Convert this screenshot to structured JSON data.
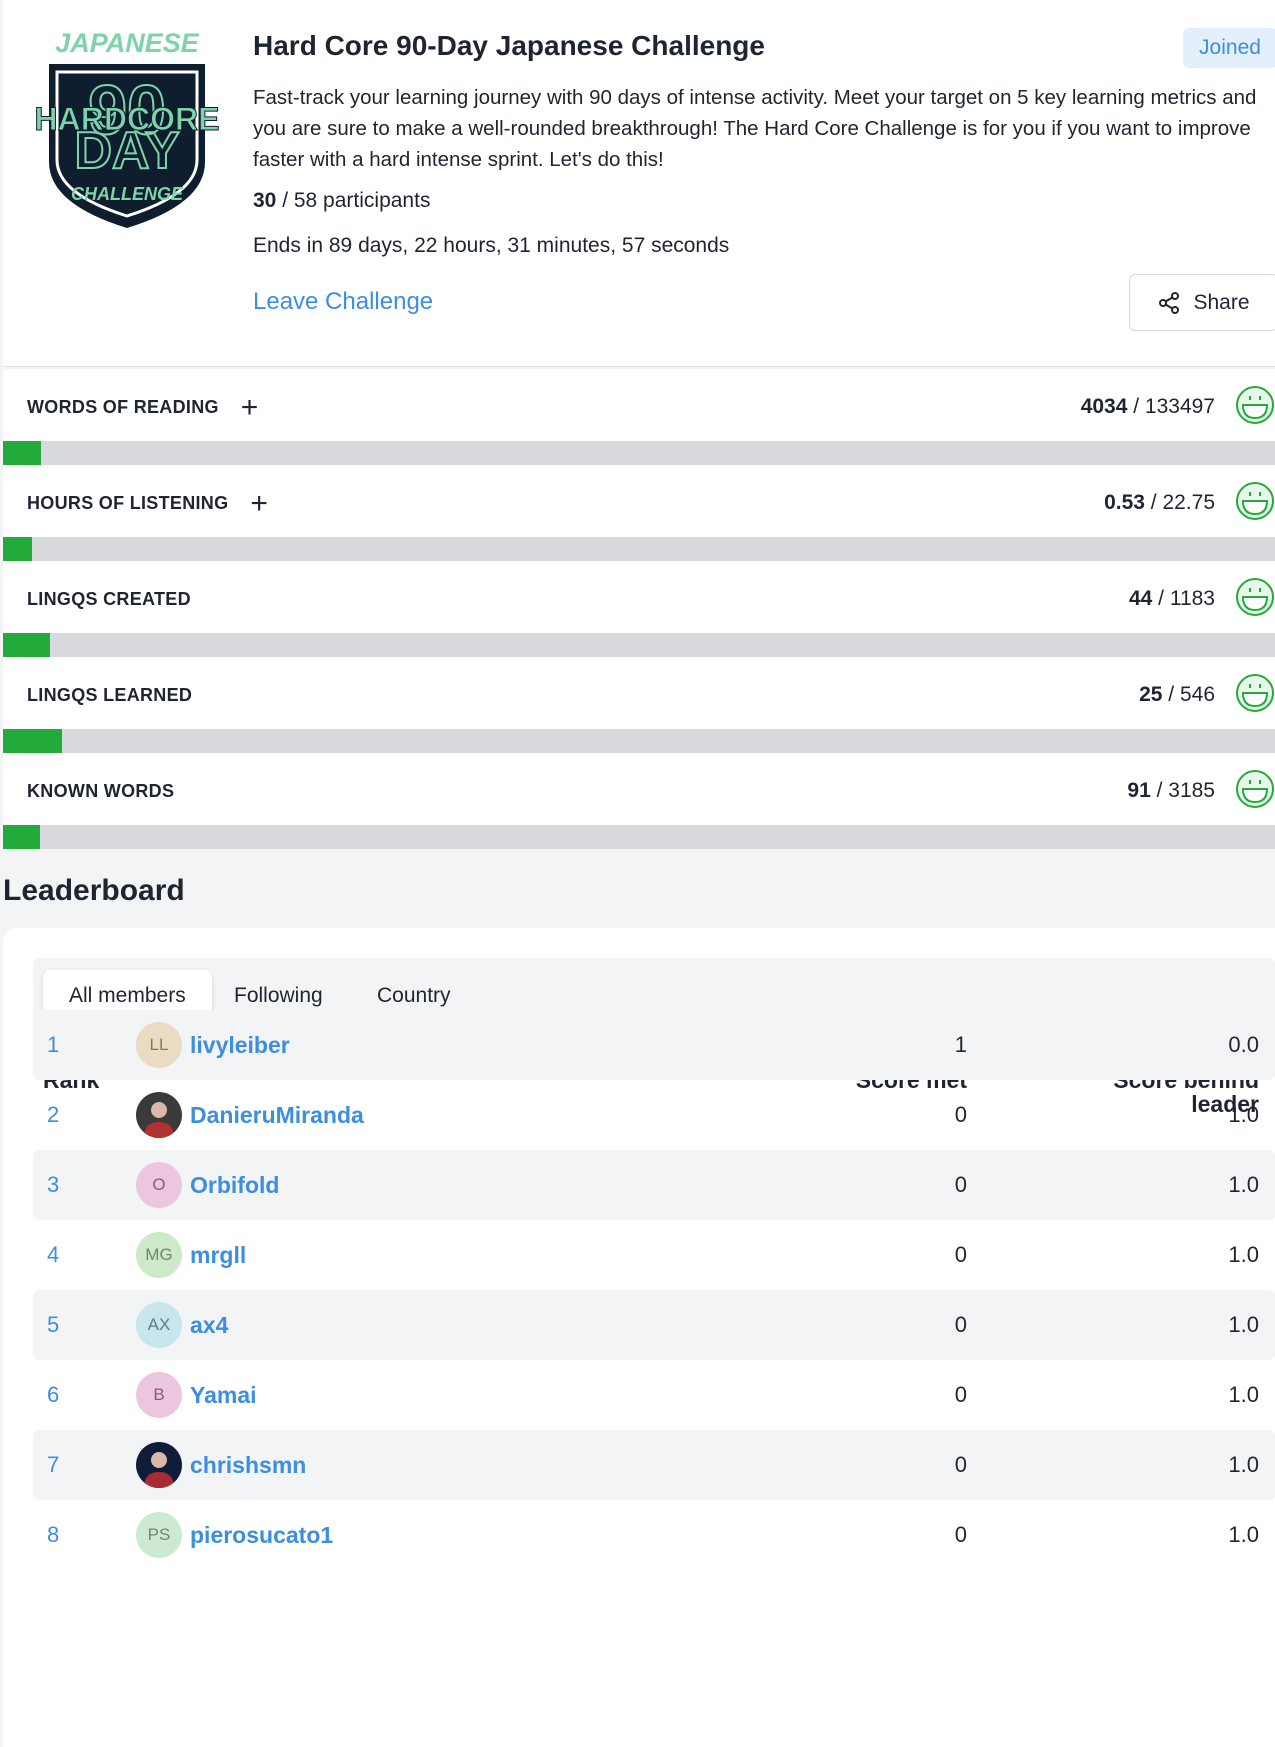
{
  "challenge": {
    "logo": {
      "top_text": "JAPANESE",
      "number": "90",
      "middle_text": "HARDCORE",
      "day_text": "DAY",
      "bottom_text": "CHALLENGE"
    },
    "title": "Hard Core 90-Day Japanese Challenge",
    "status_badge": "Joined",
    "description": "Fast-track your learning journey with 90 days of intense activity. Meet your target on 5 key learning metrics and you are sure to make a well-rounded breakthrough! The Hard Core Challenge is for you if you want to improve faster with a hard intense sprint. Let's do this!",
    "participants_count": "30",
    "participants_rest": " / 58 participants",
    "ends_text": "Ends in 89 days, 22 hours, 31 minutes, 57 seconds",
    "leave_label": "Leave Challenge",
    "share_label": "Share",
    "share_icon": "share-icon"
  },
  "metrics": [
    {
      "label": "WORDS OF READING",
      "has_add": true,
      "current": "4034",
      "target": " / 133497",
      "progress": 0.03,
      "icon": "smiley-icon"
    },
    {
      "label": "HOURS OF LISTENING",
      "has_add": true,
      "current": "0.53",
      "target": " / 22.75",
      "progress": 0.023,
      "icon": "smiley-icon"
    },
    {
      "label": "LINGQS CREATED",
      "has_add": false,
      "current": "44",
      "target": " / 1183",
      "progress": 0.037,
      "icon": "smiley-icon"
    },
    {
      "label": "LINGQS LEARNED",
      "has_add": false,
      "current": "25",
      "target": " / 546",
      "progress": 0.046,
      "icon": "smiley-icon"
    },
    {
      "label": "KNOWN WORDS",
      "has_add": false,
      "current": "91",
      "target": " / 3185",
      "progress": 0.029,
      "icon": "smiley-icon"
    }
  ],
  "add_symbol": "+",
  "leaderboard": {
    "title": "Leaderboard",
    "tabs": [
      {
        "label": "All members",
        "active": true
      },
      {
        "label": "Following",
        "active": false
      },
      {
        "label": "Country",
        "active": false
      }
    ],
    "headers": {
      "rank": "Rank",
      "score_met": "Score met",
      "score_behind_line1": "Score behind",
      "score_behind_line2": "leader"
    },
    "rows": [
      {
        "rank": "1",
        "initials": "LL",
        "avatar_color": "#eadcc2",
        "initials_color": "#8a7a5a",
        "name": "livyleiber",
        "score_met": "1",
        "score_behind": "0.0"
      },
      {
        "rank": "2",
        "initials": "",
        "avatar_color": "#3a3a3a",
        "initials_color": "#ffffff",
        "avatar_type": "photo-avatar",
        "name": "DanieruMiranda",
        "score_met": "0",
        "score_behind": "1.0"
      },
      {
        "rank": "3",
        "initials": "O",
        "avatar_color": "#ecc6df",
        "initials_color": "#8a5a7a",
        "name": "Orbifold",
        "score_met": "0",
        "score_behind": "1.0"
      },
      {
        "rank": "4",
        "initials": "MG",
        "avatar_color": "#cde9c9",
        "initials_color": "#6a8a66",
        "name": "mrgll",
        "score_met": "0",
        "score_behind": "1.0"
      },
      {
        "rank": "5",
        "initials": "AX",
        "avatar_color": "#c9e6ee",
        "initials_color": "#5a7e8a",
        "name": "ax4",
        "score_met": "0",
        "score_behind": "1.0"
      },
      {
        "rank": "6",
        "initials": "B",
        "avatar_color": "#ecc6df",
        "initials_color": "#8a5a7a",
        "name": "Yamai",
        "score_met": "0",
        "score_behind": "1.0"
      },
      {
        "rank": "7",
        "initials": "",
        "avatar_color": "#0f1d3a",
        "initials_color": "#ffffff",
        "avatar_type": "photo-avatar",
        "name": "chrishsmn",
        "score_met": "0",
        "score_behind": "1.0"
      },
      {
        "rank": "8",
        "initials": "PS",
        "avatar_color": "#cde9d2",
        "initials_color": "#6a8a70",
        "name": "pierosucato1",
        "score_met": "0",
        "score_behind": "1.0"
      }
    ]
  },
  "colors": {
    "accent": "#3d8ee0",
    "progress": "#22ab3b",
    "track": "#d7d9dc",
    "logo_green": "#7fd3a8",
    "logo_dark": "#0f1e2e"
  }
}
